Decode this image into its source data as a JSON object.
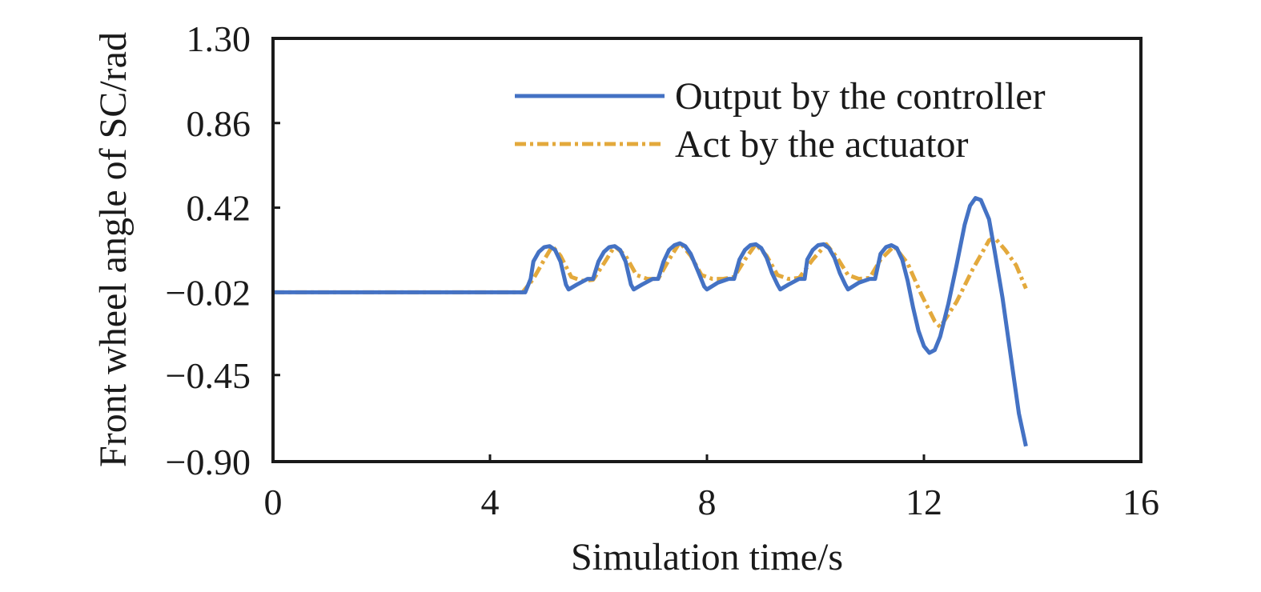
{
  "chart_data": {
    "type": "line",
    "title": "",
    "xlabel": "Simulation time/s",
    "ylabel": "Front wheel angle of SC/rad",
    "xlim": [
      0,
      16
    ],
    "ylim": [
      -0.9,
      1.3
    ],
    "x_ticks": [
      0,
      4,
      8,
      12,
      16
    ],
    "x_tick_labels": [
      "0",
      "4",
      "8",
      "12",
      "16"
    ],
    "y_ticks": [
      1.3,
      0.86,
      0.42,
      -0.02,
      -0.45,
      -0.9
    ],
    "y_tick_labels": [
      "1.30",
      "0.86",
      "0.42",
      "−0.02",
      "−0.45",
      "−0.90"
    ],
    "grid": false,
    "legend_position": "top-right",
    "series": [
      {
        "name": "Output by the controller",
        "color": "#4472C4",
        "style": "solid",
        "points": [
          [
            0,
            -0.02
          ],
          [
            4.65,
            -0.02
          ],
          [
            4.75,
            0.05
          ],
          [
            4.8,
            0.14
          ],
          [
            4.9,
            0.19
          ],
          [
            5.0,
            0.215
          ],
          [
            5.1,
            0.22
          ],
          [
            5.2,
            0.2
          ],
          [
            5.3,
            0.14
          ],
          [
            5.4,
            0.02
          ],
          [
            5.45,
            -0.005
          ],
          [
            5.6,
            0.02
          ],
          [
            5.8,
            0.05
          ],
          [
            5.9,
            0.05
          ],
          [
            6.0,
            0.14
          ],
          [
            6.1,
            0.19
          ],
          [
            6.2,
            0.215
          ],
          [
            6.3,
            0.22
          ],
          [
            6.4,
            0.2
          ],
          [
            6.5,
            0.14
          ],
          [
            6.6,
            0.02
          ],
          [
            6.65,
            -0.005
          ],
          [
            6.8,
            0.02
          ],
          [
            7.0,
            0.05
          ],
          [
            7.1,
            0.05
          ],
          [
            7.2,
            0.14
          ],
          [
            7.3,
            0.2
          ],
          [
            7.4,
            0.225
          ],
          [
            7.5,
            0.235
          ],
          [
            7.6,
            0.22
          ],
          [
            7.7,
            0.18
          ],
          [
            7.85,
            0.08
          ],
          [
            7.95,
            0.01
          ],
          [
            8.0,
            -0.005
          ],
          [
            8.2,
            0.03
          ],
          [
            8.4,
            0.05
          ],
          [
            8.5,
            0.05
          ],
          [
            8.6,
            0.15
          ],
          [
            8.7,
            0.2
          ],
          [
            8.8,
            0.225
          ],
          [
            8.9,
            0.23
          ],
          [
            9.0,
            0.21
          ],
          [
            9.1,
            0.16
          ],
          [
            9.2,
            0.08
          ],
          [
            9.3,
            0.02
          ],
          [
            9.35,
            -0.005
          ],
          [
            9.5,
            0.02
          ],
          [
            9.7,
            0.05
          ],
          [
            9.8,
            0.05
          ],
          [
            9.85,
            0.15
          ],
          [
            9.95,
            0.2
          ],
          [
            10.05,
            0.225
          ],
          [
            10.15,
            0.23
          ],
          [
            10.25,
            0.21
          ],
          [
            10.35,
            0.16
          ],
          [
            10.45,
            0.08
          ],
          [
            10.55,
            0.02
          ],
          [
            10.6,
            -0.005
          ],
          [
            10.8,
            0.03
          ],
          [
            11.0,
            0.05
          ],
          [
            11.1,
            0.05
          ],
          [
            11.2,
            0.18
          ],
          [
            11.3,
            0.215
          ],
          [
            11.4,
            0.225
          ],
          [
            11.5,
            0.21
          ],
          [
            11.6,
            0.15
          ],
          [
            11.7,
            0.04
          ],
          [
            11.8,
            -0.1
          ],
          [
            11.9,
            -0.22
          ],
          [
            12.0,
            -0.3
          ],
          [
            12.1,
            -0.335
          ],
          [
            12.2,
            -0.32
          ],
          [
            12.3,
            -0.25
          ],
          [
            12.45,
            -0.08
          ],
          [
            12.6,
            0.12
          ],
          [
            12.75,
            0.33
          ],
          [
            12.85,
            0.43
          ],
          [
            12.95,
            0.47
          ],
          [
            13.05,
            0.46
          ],
          [
            13.2,
            0.36
          ],
          [
            13.3,
            0.2
          ],
          [
            13.45,
            -0.05
          ],
          [
            13.6,
            -0.35
          ],
          [
            13.75,
            -0.65
          ],
          [
            13.88,
            -0.82
          ]
        ]
      },
      {
        "name": "Act by the actuator",
        "color": "#E3A93C",
        "style": "dashdot",
        "points": [
          [
            0,
            -0.02
          ],
          [
            4.6,
            -0.02
          ],
          [
            4.8,
            0.05
          ],
          [
            5.0,
            0.15
          ],
          [
            5.15,
            0.22
          ],
          [
            5.3,
            0.17
          ],
          [
            5.5,
            0.06
          ],
          [
            5.7,
            0.04
          ],
          [
            5.9,
            0.045
          ],
          [
            6.1,
            0.13
          ],
          [
            6.3,
            0.22
          ],
          [
            6.5,
            0.17
          ],
          [
            6.7,
            0.07
          ],
          [
            6.9,
            0.05
          ],
          [
            7.1,
            0.05
          ],
          [
            7.3,
            0.15
          ],
          [
            7.5,
            0.24
          ],
          [
            7.7,
            0.17
          ],
          [
            7.9,
            0.07
          ],
          [
            8.1,
            0.05
          ],
          [
            8.3,
            0.05
          ],
          [
            8.5,
            0.06
          ],
          [
            8.7,
            0.15
          ],
          [
            8.9,
            0.23
          ],
          [
            9.1,
            0.17
          ],
          [
            9.3,
            0.07
          ],
          [
            9.5,
            0.05
          ],
          [
            9.7,
            0.055
          ],
          [
            9.95,
            0.15
          ],
          [
            10.2,
            0.23
          ],
          [
            10.4,
            0.16
          ],
          [
            10.6,
            0.07
          ],
          [
            10.8,
            0.05
          ],
          [
            11.0,
            0.055
          ],
          [
            11.2,
            0.15
          ],
          [
            11.45,
            0.22
          ],
          [
            11.7,
            0.13
          ],
          [
            11.95,
            -0.03
          ],
          [
            12.2,
            -0.17
          ],
          [
            12.3,
            -0.2
          ],
          [
            12.6,
            -0.07
          ],
          [
            12.9,
            0.1
          ],
          [
            13.2,
            0.25
          ],
          [
            13.3,
            0.265
          ],
          [
            13.5,
            0.2
          ],
          [
            13.7,
            0.12
          ],
          [
            13.88,
            0.0
          ]
        ]
      }
    ]
  }
}
